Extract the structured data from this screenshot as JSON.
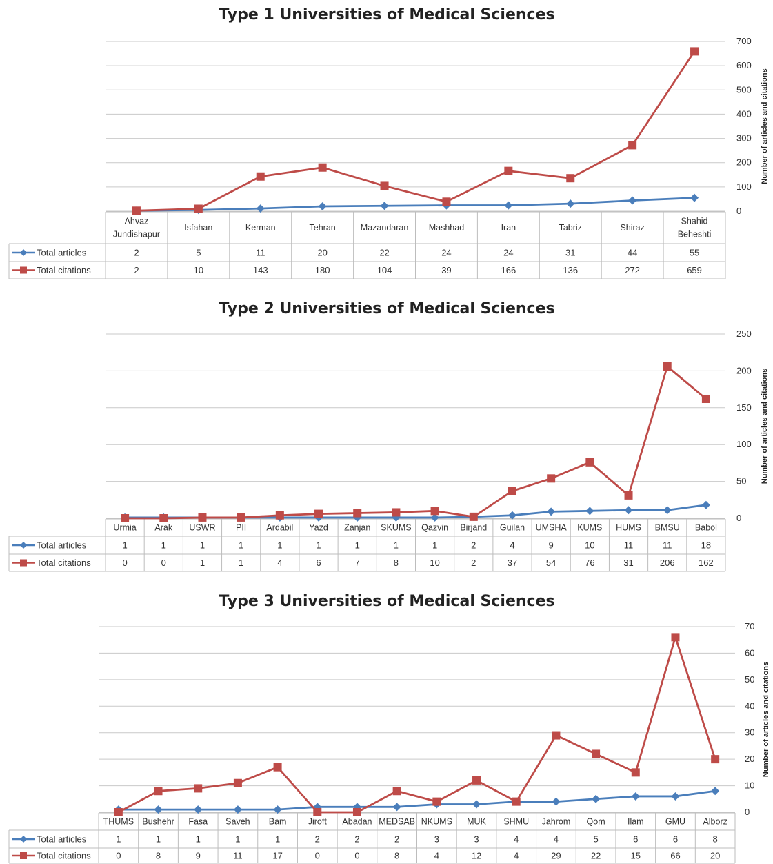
{
  "colors": {
    "articles": "#4a7ebb",
    "citations": "#be4b48"
  },
  "chart_data": [
    {
      "type": "line",
      "title": "Type 1 Universities of Medical Sciences",
      "ylabel": "Number of articles and citations",
      "ylim": [
        0,
        700
      ],
      "yticks": [
        "0",
        "100",
        "200",
        "300",
        "400",
        "500",
        "600",
        "700"
      ],
      "categories": [
        [
          "Ahvaz",
          "Jundishapur"
        ],
        [
          "Isfahan"
        ],
        [
          "Kerman"
        ],
        [
          "Tehran"
        ],
        [
          "Mazandaran"
        ],
        [
          "Mashhad"
        ],
        [
          "Iran"
        ],
        [
          "Tabriz"
        ],
        [
          "Shiraz"
        ],
        [
          "Shahid",
          "Beheshti"
        ]
      ],
      "series": [
        {
          "name": "Total articles",
          "values": [
            2,
            5,
            11,
            20,
            22,
            24,
            24,
            31,
            44,
            55
          ]
        },
        {
          "name": "Total citations",
          "values": [
            2,
            10,
            143,
            180,
            104,
            39,
            166,
            136,
            272,
            659
          ]
        }
      ]
    },
    {
      "type": "line",
      "title": "Type 2 Universities of Medical Sciences",
      "ylabel": "Number of articles and citations",
      "ylim": [
        0,
        250
      ],
      "yticks": [
        "0",
        "50",
        "100",
        "150",
        "200",
        "250"
      ],
      "categories": [
        [
          "Urmia"
        ],
        [
          "Arak"
        ],
        [
          "USWR"
        ],
        [
          "PII"
        ],
        [
          "Ardabil"
        ],
        [
          "Yazd"
        ],
        [
          "Zanjan"
        ],
        [
          "SKUMS"
        ],
        [
          "Qazvin"
        ],
        [
          "Birjand"
        ],
        [
          "Guilan"
        ],
        [
          "UMSHA"
        ],
        [
          "KUMS"
        ],
        [
          "HUMS"
        ],
        [
          "BMSU"
        ],
        [
          "Babol"
        ]
      ],
      "series": [
        {
          "name": "Total articles",
          "values": [
            1,
            1,
            1,
            1,
            1,
            1,
            1,
            1,
            1,
            2,
            4,
            9,
            10,
            11,
            11,
            18
          ]
        },
        {
          "name": "Total citations",
          "values": [
            0,
            0,
            1,
            1,
            4,
            6,
            7,
            8,
            10,
            2,
            37,
            54,
            76,
            31,
            206,
            162
          ]
        }
      ]
    },
    {
      "type": "line",
      "title": "Type 3 Universities of Medical Sciences",
      "ylabel": "Number of articles and citations",
      "ylim": [
        0,
        70
      ],
      "yticks": [
        "0",
        "10",
        "20",
        "30",
        "40",
        "50",
        "60",
        "70"
      ],
      "categories": [
        [
          "THUMS"
        ],
        [
          "Bushehr"
        ],
        [
          "Fasa"
        ],
        [
          "Saveh"
        ],
        [
          "Bam"
        ],
        [
          "Jiroft"
        ],
        [
          "Abadan"
        ],
        [
          "MEDSAB"
        ],
        [
          "NKUMS"
        ],
        [
          "MUK"
        ],
        [
          "SHMU"
        ],
        [
          "Jahrom"
        ],
        [
          "Qom"
        ],
        [
          "Ilam"
        ],
        [
          "GMU"
        ],
        [
          "Alborz"
        ]
      ],
      "series": [
        {
          "name": "Total articles",
          "values": [
            1,
            1,
            1,
            1,
            1,
            2,
            2,
            2,
            3,
            3,
            4,
            4,
            5,
            6,
            6,
            8
          ]
        },
        {
          "name": "Total citations",
          "values": [
            0,
            8,
            9,
            11,
            17,
            0,
            0,
            8,
            4,
            12,
            4,
            29,
            22,
            15,
            66,
            20
          ]
        }
      ]
    }
  ]
}
